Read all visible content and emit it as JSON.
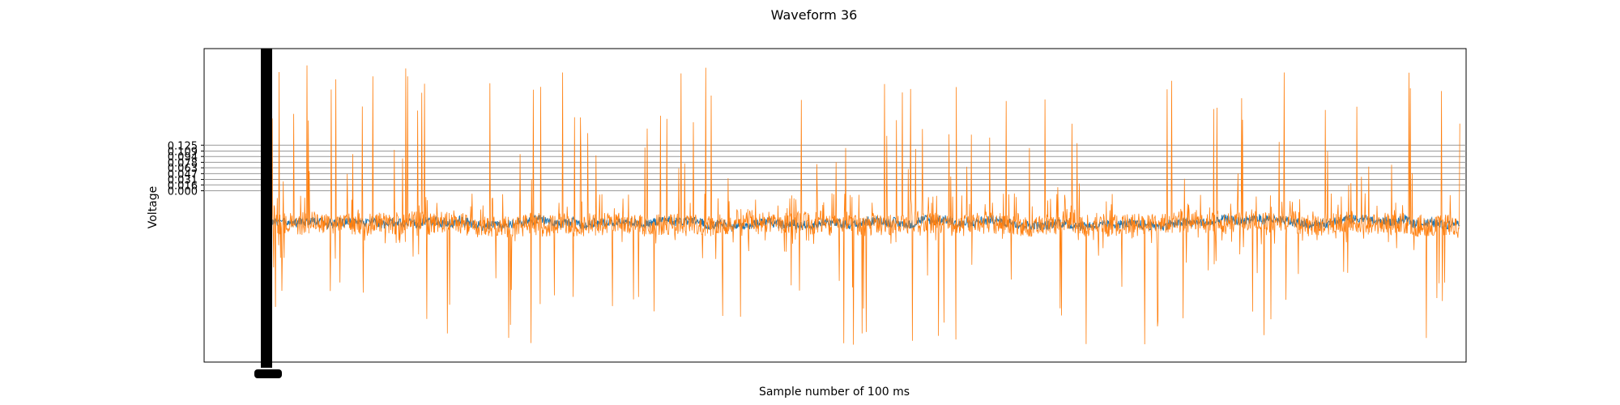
{
  "chart_data": {
    "type": "line",
    "title": "Waveform 36",
    "xlabel": "Sample number of 100 ms",
    "ylabel": "Voltage",
    "grid": true,
    "legend": "none",
    "y_ticks": [
      "0.000",
      "0.016",
      "0.031",
      "0.047",
      "0.063",
      "0.078",
      "0.094",
      "0.109",
      "0.125"
    ],
    "y_tick_values": [
      0.0,
      0.016,
      0.031,
      0.047,
      0.063,
      0.078,
      0.094,
      0.109,
      0.125
    ],
    "ylim": [
      -0.47,
      0.39
    ],
    "xlim": [
      -1050,
      18800
    ],
    "x_extent": [
      0,
      18700
    ],
    "series": [
      {
        "color": "#1f77b4",
        "baseline": -0.087,
        "noise_amp": 0.012,
        "spikes": false
      },
      {
        "color": "#ff7f0e",
        "baseline": -0.09,
        "noise_amp": 0.03,
        "spikes": true,
        "peak_max": 0.35,
        "trough_min": -0.43
      }
    ]
  }
}
